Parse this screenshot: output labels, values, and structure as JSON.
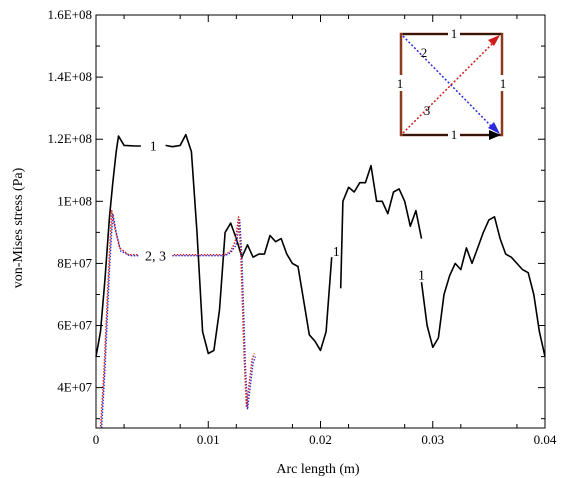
{
  "chart_data": {
    "type": "line",
    "title": "",
    "xlabel": "Arc length (m)",
    "ylabel": "von-Mises stress (Pa)",
    "xlim": [
      0,
      0.04
    ],
    "ylim": [
      27000000,
      160000000
    ],
    "x_ticks": [
      0,
      0.01,
      0.02,
      0.03,
      0.04
    ],
    "x_tick_labels": [
      "0",
      "0.01",
      "0.02",
      "0.03",
      "0.04"
    ],
    "y_ticks": [
      40000000,
      60000000,
      80000000,
      100000000,
      120000000,
      140000000,
      160000000
    ],
    "y_tick_labels": [
      "4E+07",
      "6E+07",
      "8E+07",
      "1E+08",
      "1.2E+08",
      "1.4E+08",
      "1.6E+08"
    ],
    "grid": false,
    "series": [
      {
        "color": "#000000",
        "style": "solid",
        "segments": [
          [
            [
              0.0,
              50000000.0
            ],
            [
              0.0004,
              58000000.0
            ],
            [
              0.0008,
              75000000.0
            ],
            [
              0.0012,
              95000000.0
            ],
            [
              0.0015,
              106000000.0
            ],
            [
              0.0018,
              116000000.0
            ],
            [
              0.002,
              121000000.0
            ],
            [
              0.0025,
              118000000.0
            ],
            [
              0.0035,
              117800000.0
            ],
            [
              0.004,
              117800000.0
            ]
          ],
          [
            [
              0.0062,
              118000000.0
            ],
            [
              0.0068,
              117600000.0
            ],
            [
              0.0075,
              118000000.0
            ],
            [
              0.008,
              121500000.0
            ],
            [
              0.0085,
              116000000.0
            ],
            [
              0.009,
              90000000.0
            ],
            [
              0.0095,
              58000000.0
            ],
            [
              0.01,
              51000000.0
            ],
            [
              0.0105,
              52000000.0
            ],
            [
              0.011,
              65000000.0
            ],
            [
              0.0115,
              90000000.0
            ],
            [
              0.012,
              93000000.0
            ],
            [
              0.0125,
              88000000.0
            ],
            [
              0.013,
              82000000.0
            ],
            [
              0.0135,
              86000000.0
            ],
            [
              0.014,
              82000000.0
            ],
            [
              0.0145,
              83000000.0
            ],
            [
              0.015,
              83000000.0
            ],
            [
              0.0155,
              89000000.0
            ],
            [
              0.016,
              87000000.0
            ],
            [
              0.0165,
              88000000.0
            ],
            [
              0.017,
              83000000.0
            ],
            [
              0.0175,
              80000000.0
            ],
            [
              0.018,
              79000000.0
            ],
            [
              0.0185,
              68000000.0
            ],
            [
              0.019,
              57000000.0
            ],
            [
              0.0195,
              55000000.0
            ],
            [
              0.02,
              52000000.0
            ],
            [
              0.0205,
              58000000.0
            ],
            [
              0.021,
              82000000.0
            ]
          ],
          [
            [
              0.0218,
              72000000.0
            ],
            [
              0.022,
              100000000.0
            ],
            [
              0.0225,
              104500000.0
            ],
            [
              0.023,
              103000000.0
            ],
            [
              0.0235,
              106000000.0
            ],
            [
              0.024,
              106000000.0
            ],
            [
              0.0245,
              111500000.0
            ],
            [
              0.025,
              100000000.0
            ],
            [
              0.0255,
              100000000.0
            ],
            [
              0.026,
              96000000.0
            ],
            [
              0.0265,
              103000000.0
            ],
            [
              0.027,
              104000000.0
            ],
            [
              0.0275,
              100000000.0
            ],
            [
              0.028,
              92000000.0
            ],
            [
              0.0285,
              97000000.0
            ],
            [
              0.029,
              88000000.0
            ]
          ],
          [
            [
              0.029,
              74000000.0
            ],
            [
              0.0295,
              60000000.0
            ],
            [
              0.03,
              53000000.0
            ],
            [
              0.0305,
              56000000.0
            ],
            [
              0.031,
              70000000.0
            ],
            [
              0.0315,
              76000000.0
            ],
            [
              0.032,
              80000000.0
            ],
            [
              0.0325,
              78000000.0
            ],
            [
              0.033,
              85000000.0
            ],
            [
              0.0335,
              80000000.0
            ],
            [
              0.034,
              85000000.0
            ],
            [
              0.0345,
              90000000.0
            ],
            [
              0.035,
              94000000.0
            ],
            [
              0.0355,
              95000000.0
            ],
            [
              0.036,
              88000000.0
            ],
            [
              0.0365,
              83000000.0
            ],
            [
              0.037,
              82000000.0
            ],
            [
              0.0375,
              80000000.0
            ],
            [
              0.038,
              78000000.0
            ],
            [
              0.0385,
              77000000.0
            ],
            [
              0.039,
              70000000.0
            ],
            [
              0.0395,
              58000000.0
            ],
            [
              0.04,
              50000000.0
            ]
          ]
        ]
      },
      {
        "color": "#2a2ad8",
        "style": "dotted",
        "segments": [
          [
            [
              0.0005,
              27000000.0
            ],
            [
              0.0008,
              46000000.0
            ],
            [
              0.0012,
              78000000.0
            ],
            [
              0.0015,
              96000000.0
            ],
            [
              0.0018,
              90000000.0
            ],
            [
              0.0022,
              84000000.0
            ],
            [
              0.003,
              82500000.0
            ],
            [
              0.0038,
              82500000.0
            ]
          ],
          [
            [
              0.0068,
              82500000.0
            ],
            [
              0.009,
              82500000.0
            ],
            [
              0.0115,
              82500000.0
            ],
            [
              0.012,
              83500000.0
            ],
            [
              0.0125,
              86000000.0
            ],
            [
              0.0128,
              94000000.0
            ],
            [
              0.013,
              82000000.0
            ],
            [
              0.0133,
              48000000.0
            ],
            [
              0.0135,
              33000000.0
            ],
            [
              0.0138,
              42000000.0
            ],
            [
              0.014,
              48000000.0
            ],
            [
              0.0142,
              50000000.0
            ]
          ]
        ]
      },
      {
        "color": "#d01b1b",
        "style": "dotted-offset",
        "segments": [
          [
            [
              0.0004,
              27000000.0
            ],
            [
              0.0007,
              45000000.0
            ],
            [
              0.0011,
              76000000.0
            ],
            [
              0.0014,
              97000000.0
            ],
            [
              0.0017,
              91000000.0
            ],
            [
              0.0021,
              85000000.0
            ],
            [
              0.0029,
              82800000.0
            ],
            [
              0.0038,
              82800000.0
            ]
          ],
          [
            [
              0.0068,
              82800000.0
            ],
            [
              0.009,
              82800000.0
            ],
            [
              0.0115,
              82800000.0
            ],
            [
              0.012,
              84000000.0
            ],
            [
              0.0124,
              87000000.0
            ],
            [
              0.0127,
              95000000.0
            ],
            [
              0.0129,
              83000000.0
            ],
            [
              0.0132,
              49000000.0
            ],
            [
              0.0134,
              34000000.0
            ],
            [
              0.0137,
              43000000.0
            ],
            [
              0.0139,
              49000000.0
            ],
            [
              0.0141,
              51000000.0
            ]
          ]
        ]
      }
    ],
    "annotations": [
      {
        "text": "1",
        "x": 0.0051,
        "y": 118000000
      },
      {
        "text": "2, 3",
        "x": 0.0053,
        "y": 82500000
      },
      {
        "text": "1",
        "x": 0.0214,
        "y": 84000000
      },
      {
        "text": "1",
        "x": 0.029,
        "y": 76500000
      }
    ],
    "inset": {
      "labels": {
        "top": "1",
        "left": "1",
        "right": "1",
        "bottom": "1",
        "diag_2": "2",
        "diag_3": "3"
      },
      "colors": {
        "frame": "#8b3a1a",
        "path1": "#000000",
        "path2": "#2a2ad8",
        "path3": "#d01b1b"
      }
    }
  }
}
